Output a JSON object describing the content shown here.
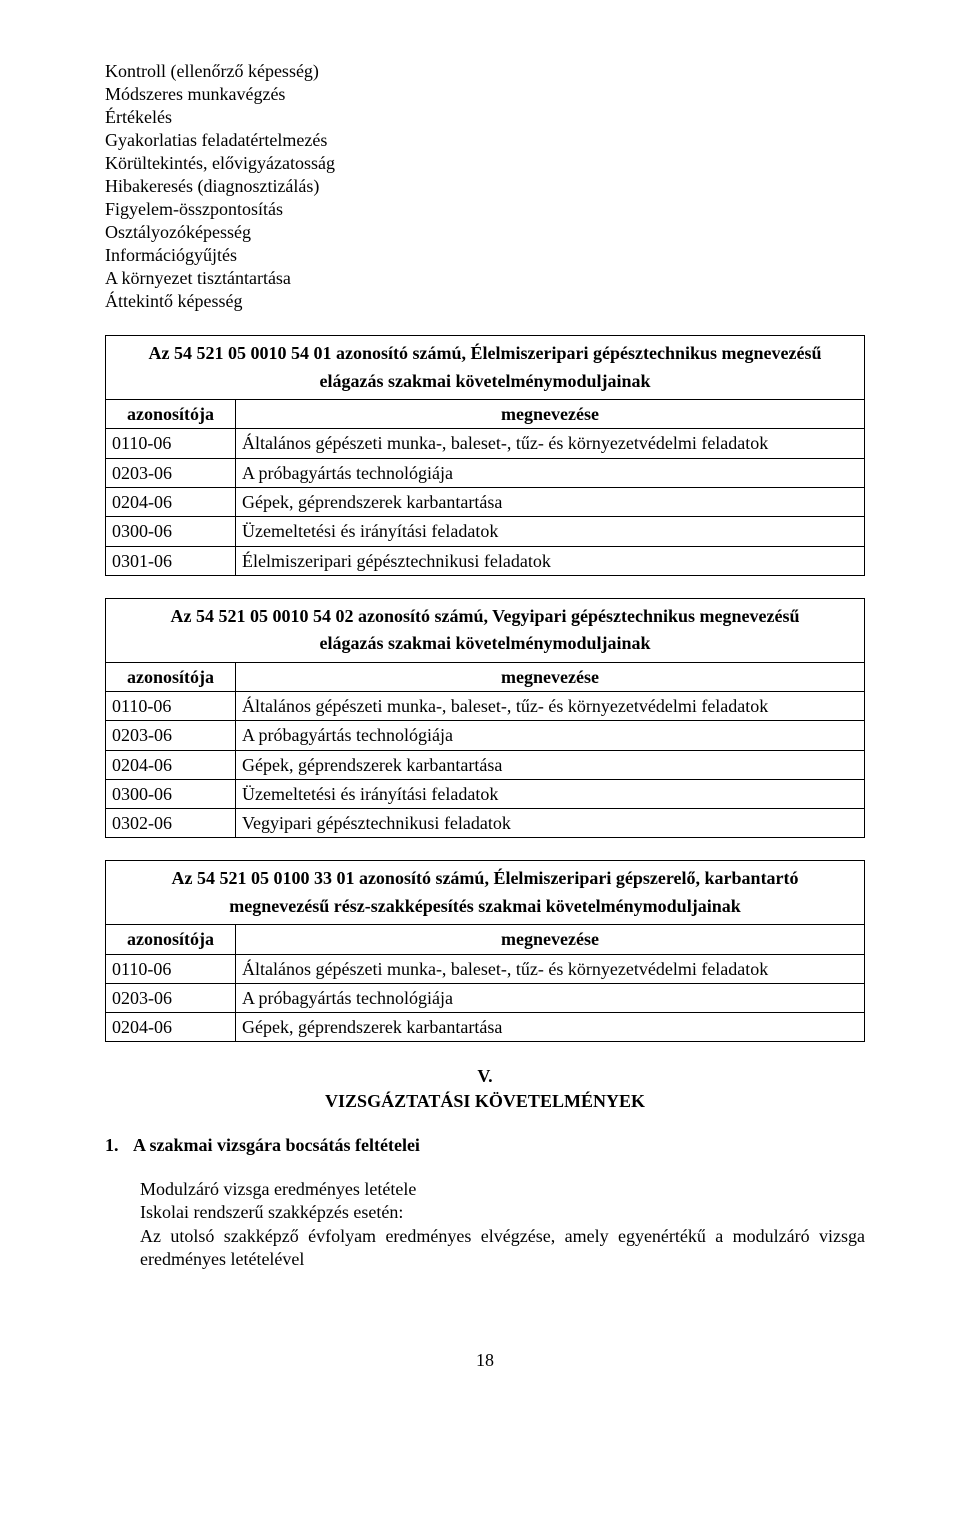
{
  "top_list": [
    "Kontroll (ellenőrző képesség)",
    "Módszeres munkavégzés",
    "Értékelés",
    "Gyakorlatias feladatértelmezés",
    "Körültekintés, elővigyázatosság",
    "Hibakeresés (diagnosztizálás)",
    "Figyelem-összpontosítás",
    "Osztályozóképesség",
    "Információgyűjtés",
    "A környezet tisztántartása",
    "Áttekintő képesség"
  ],
  "tables": [
    {
      "title_lines": [
        "Az 54 521 05 0010 54 01 azonosító számú, Élelmiszeripari gépésztechnikus megnevezésű",
        "elágazás szakmai követelménymoduljainak"
      ],
      "header": {
        "col1": "azonosítója",
        "col2": "megnevezése"
      },
      "rows": [
        {
          "id": "0110-06",
          "name": "Általános gépészeti munka-, baleset-, tűz- és környezetvédelmi feladatok"
        },
        {
          "id": "0203-06",
          "name": "A próbagyártás technológiája"
        },
        {
          "id": "0204-06",
          "name": "Gépek, géprendszerek karbantartása"
        },
        {
          "id": "0300-06",
          "name": "Üzemeltetési és irányítási feladatok"
        },
        {
          "id": "0301-06",
          "name": "Élelmiszeripari gépésztechnikusi feladatok"
        }
      ]
    },
    {
      "title_lines": [
        "Az 54 521 05 0010 54 02 azonosító számú, Vegyipari gépésztechnikus megnevezésű",
        "elágazás szakmai követelménymoduljainak"
      ],
      "header": {
        "col1": "azonosítója",
        "col2": "megnevezése"
      },
      "rows": [
        {
          "id": "0110-06",
          "name": "Általános gépészeti munka-, baleset-, tűz- és környezetvédelmi feladatok"
        },
        {
          "id": "0203-06",
          "name": "A próbagyártás technológiája"
        },
        {
          "id": "0204-06",
          "name": "Gépek, géprendszerek karbantartása"
        },
        {
          "id": "0300-06",
          "name": "Üzemeltetési és irányítási feladatok"
        },
        {
          "id": "0302-06",
          "name": "Vegyipari gépésztechnikusi feladatok"
        }
      ]
    },
    {
      "title_lines": [
        "Az 54 521 05 0100 33 01 azonosító számú, Élelmiszeripari gépszerelő, karbantartó",
        "megnevezésű rész-szakképesítés szakmai követelménymoduljainak"
      ],
      "header": {
        "col1": "azonosítója",
        "col2": "megnevezése"
      },
      "rows": [
        {
          "id": "0110-06",
          "name": "Általános gépészeti munka-, baleset-, tűz- és környezetvédelmi feladatok"
        },
        {
          "id": "0203-06",
          "name": "A próbagyártás technológiája"
        },
        {
          "id": "0204-06",
          "name": "Gépek, géprendszerek karbantartása"
        }
      ]
    }
  ],
  "section_v": {
    "num": "V.",
    "title": "VIZSGÁZTATÁSI KÖVETELMÉNYEK"
  },
  "subheading": {
    "num": "1.",
    "text": "A szakmai vizsgára bocsátás feltételei"
  },
  "body_lines": [
    "Modulzáró vizsga eredményes letétele",
    "Iskolai rendszerű szakképzés esetén:",
    "Az utolsó szakképző évfolyam eredményes elvégzése, amely egyenértékű a modulzáró vizsga eredményes letételével"
  ],
  "page_number": "18",
  "colors": {
    "text": "#000000",
    "background": "#ffffff",
    "border": "#000000"
  }
}
